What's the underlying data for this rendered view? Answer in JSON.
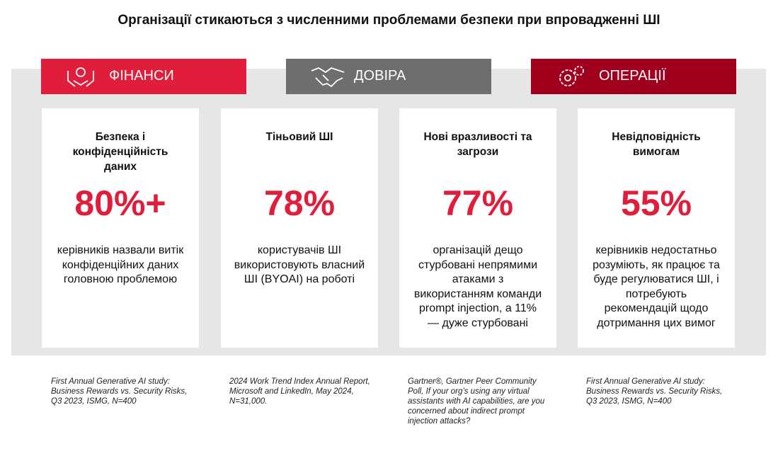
{
  "title": "Організації стикаються з численними проблемами безпеки при впровадженні ШІ",
  "headers": [
    {
      "label": "ФІНАНСИ"
    },
    {
      "label": "ДОВІРА"
    },
    {
      "label": "ОПЕРАЦІЇ"
    }
  ],
  "cards": [
    {
      "heading": "Безпека і конфіденційність даних",
      "stat": "80%+",
      "description": "керівників назвали витік конфіденційних даних головною проблемою",
      "source": "First Annual Generative AI study: Business Rewards vs. Security Risks, Q3 2023, ISMG, N=400"
    },
    {
      "heading": "Тіньовий ШІ",
      "stat": "78%",
      "description": "користувачів ШІ використовують власний ШІ (BYOAI) на роботі",
      "source": "2024 Work Trend Index Annual Report, Microsoft and LinkedIn, May 2024, N=31,000."
    },
    {
      "heading": "Нові вразливості та загрози",
      "stat": "77%",
      "description": "організацій дещо стурбовані непрямими атаками з використанням команди prompt injection, а 11% — дуже стурбовані",
      "source": "Gartner®, Gartner Peer Community Poll, If your org’s using any virtual assistants with AI capabilities, are you concerned about indirect prompt injection attacks?"
    },
    {
      "heading": "Невідповідність вимогам",
      "stat": "55%",
      "description": "керівників недостатньо розуміють, як працює та буде регулюватися ШІ, і потребують рекомендацій щодо дотримання цих вимог",
      "source": "First Annual Generative AI study: Business Rewards vs. Security Risks, Q3 2023, ISMG, N=400"
    }
  ]
}
